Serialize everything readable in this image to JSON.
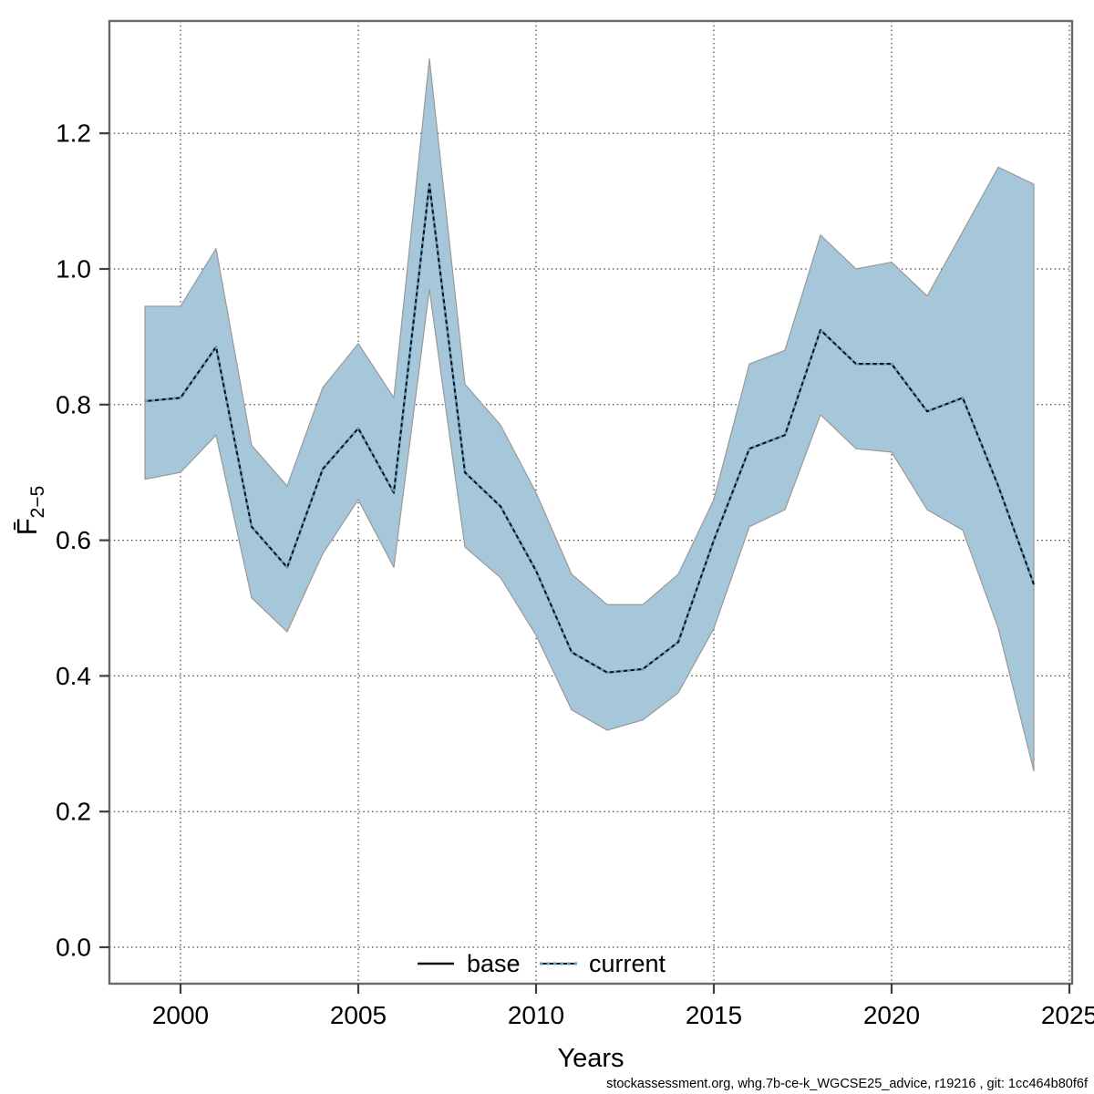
{
  "page": {
    "background": "#ffffff"
  },
  "footer": {
    "text": "stockassessment.org, whg.7b-ce-k_WGCSE25_advice, r19216 , git: 1cc464b80f6f"
  },
  "legend": {
    "items": [
      {
        "label": "base",
        "color": "#111111",
        "style": "solid"
      },
      {
        "label": "current",
        "color": "#5aa0c8",
        "style": "dotted"
      }
    ]
  },
  "chart_data": {
    "type": "line",
    "title": "",
    "xlabel": "Years",
    "ylabel": {
      "display_base": "F̄",
      "display_subscript": "2−5",
      "plain": "Fbar(2-5)"
    },
    "grid": true,
    "legend_position": "bottom-center-inside",
    "xlim": [
      1998,
      2025.1
    ],
    "ylim": [
      -0.054,
      1.366
    ],
    "x_ticks": [
      {
        "value": 2000,
        "label": "2000"
      },
      {
        "value": 2005,
        "label": "2005"
      },
      {
        "value": 2010,
        "label": "2010"
      },
      {
        "value": 2015,
        "label": "2015"
      },
      {
        "value": 2020,
        "label": "2020"
      },
      {
        "value": 2025,
        "label": "2025"
      }
    ],
    "y_ticks": [
      {
        "value": 0.0,
        "label": "0.0"
      },
      {
        "value": 0.2,
        "label": "0.2"
      },
      {
        "value": 0.4,
        "label": "0.4"
      },
      {
        "value": 0.6,
        "label": "0.6"
      },
      {
        "value": 0.8,
        "label": "0.8"
      },
      {
        "value": 1.0,
        "label": "1.0"
      },
      {
        "value": 1.2,
        "label": "1.2"
      }
    ],
    "x": [
      1999,
      2000,
      2001,
      2002,
      2003,
      2004,
      2005,
      2006,
      2007,
      2008,
      2009,
      2010,
      2011,
      2012,
      2013,
      2014,
      2015,
      2016,
      2017,
      2018,
      2019,
      2020,
      2021,
      2022,
      2023,
      2024
    ],
    "series": [
      {
        "name": "base",
        "line_style": "solid",
        "color": "#111111",
        "values": [
          0.805,
          0.81,
          0.885,
          0.62,
          0.56,
          0.705,
          0.765,
          0.67,
          1.125,
          0.7,
          0.65,
          0.555,
          0.435,
          0.405,
          0.41,
          0.45,
          0.6,
          0.735,
          0.755,
          0.91,
          0.86,
          0.86,
          0.79,
          0.81,
          0.68,
          0.535
        ]
      },
      {
        "name": "current",
        "line_style": "dotted",
        "color": "#5aa0c8",
        "values": [
          0.805,
          0.81,
          0.885,
          0.62,
          0.56,
          0.705,
          0.765,
          0.67,
          1.125,
          0.7,
          0.65,
          0.555,
          0.435,
          0.405,
          0.41,
          0.45,
          0.6,
          0.735,
          0.755,
          0.91,
          0.86,
          0.86,
          0.79,
          0.81,
          0.68,
          0.535
        ]
      }
    ],
    "band": {
      "series": "current",
      "color": "#a6c7d9",
      "edge_color": "#999999",
      "upper": [
        0.945,
        0.945,
        1.03,
        0.74,
        0.68,
        0.825,
        0.89,
        0.81,
        1.31,
        0.83,
        0.77,
        0.67,
        0.55,
        0.505,
        0.505,
        0.55,
        0.66,
        0.86,
        0.88,
        1.05,
        1.0,
        1.01,
        0.96,
        1.055,
        1.15,
        1.125
      ],
      "lower": [
        0.69,
        0.7,
        0.755,
        0.515,
        0.465,
        0.58,
        0.66,
        0.56,
        0.97,
        0.59,
        0.545,
        0.46,
        0.35,
        0.32,
        0.335,
        0.375,
        0.47,
        0.62,
        0.645,
        0.785,
        0.735,
        0.73,
        0.645,
        0.615,
        0.47,
        0.26
      ]
    }
  }
}
